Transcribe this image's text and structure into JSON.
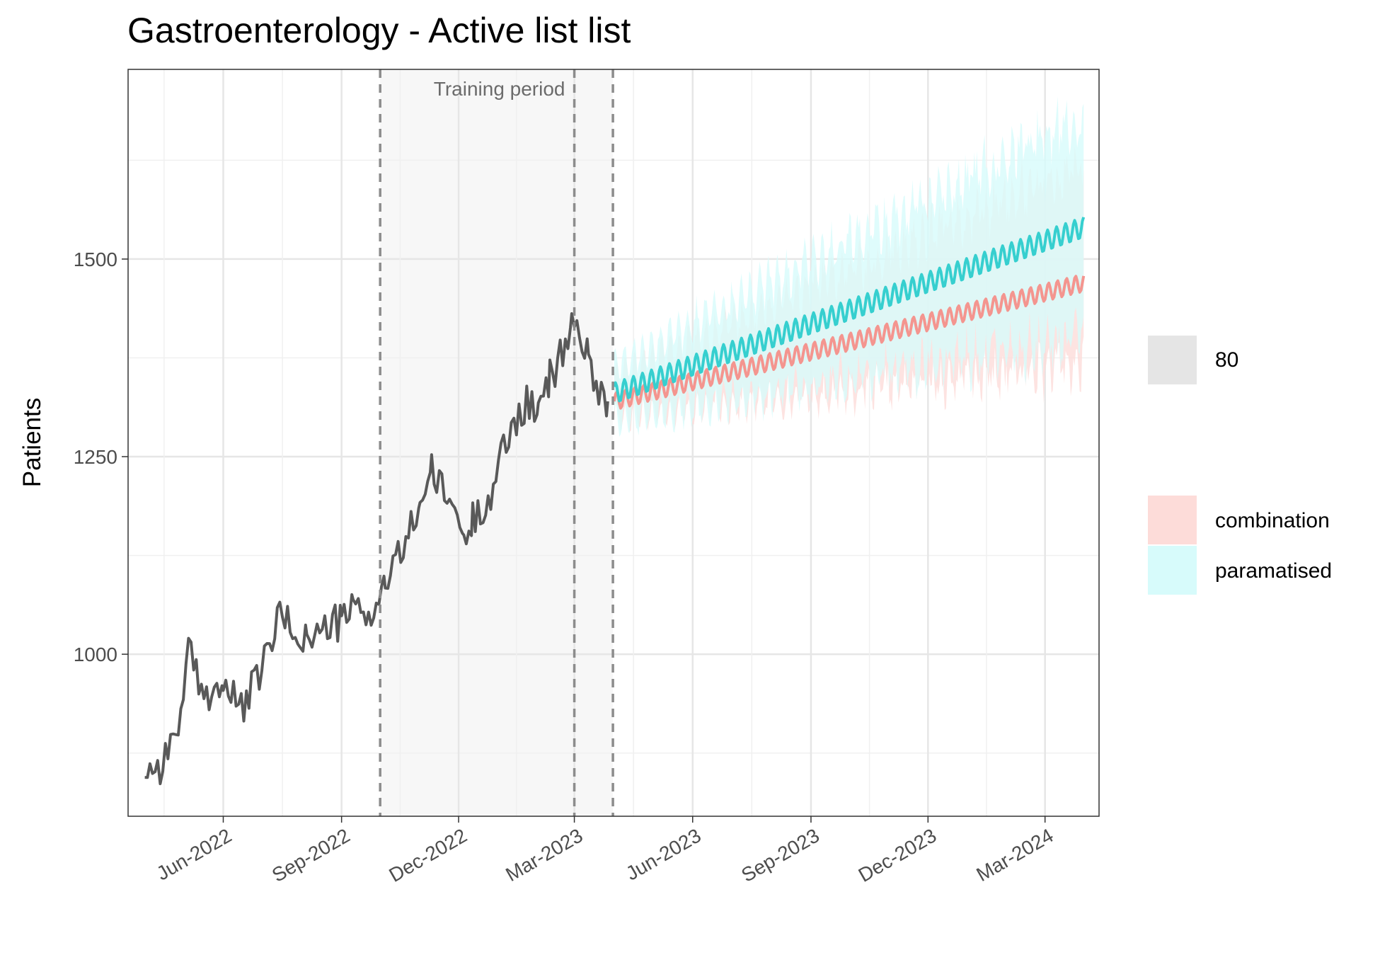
{
  "chart_data": {
    "type": "line",
    "title": "Gastroenterology - Active list list",
    "xlabel": "",
    "ylabel": "Patients",
    "xlim": [
      "2022-03-19",
      "2024-04-12"
    ],
    "ylim": [
      795,
      1740
    ],
    "y_ticks": [
      1000,
      1250,
      1500
    ],
    "x_ticks": [
      {
        "date": "2022-06-01",
        "label": "Jun-2022"
      },
      {
        "date": "2022-09-01",
        "label": "Sep-2022"
      },
      {
        "date": "2022-12-01",
        "label": "Dec-2022"
      },
      {
        "date": "2023-03-01",
        "label": "Mar-2023"
      },
      {
        "date": "2023-06-01",
        "label": "Jun-2023"
      },
      {
        "date": "2023-09-01",
        "label": "Sep-2023"
      },
      {
        "date": "2023-12-01",
        "label": "Dec-2023"
      },
      {
        "date": "2024-03-01",
        "label": "Mar-2024"
      }
    ],
    "grid": true,
    "legend_position": "right",
    "training_period": {
      "start": "2022-10-01",
      "end": "2023-03-31",
      "label": "Training period"
    },
    "marker_lines": [
      "2022-10-01",
      "2023-03-01",
      "2023-03-31"
    ],
    "series": [
      {
        "role": "observed",
        "color": "#595959",
        "x": [
          "2022-04-01",
          "2022-04-15",
          "2022-05-01",
          "2022-05-05",
          "2022-05-15",
          "2022-06-01",
          "2022-06-15",
          "2022-06-25",
          "2022-07-05",
          "2022-07-15",
          "2022-07-25",
          "2022-08-05",
          "2022-08-15",
          "2022-08-25",
          "2022-09-01",
          "2022-09-10",
          "2022-09-20",
          "2022-09-28",
          "2022-10-05",
          "2022-10-15",
          "2022-10-25",
          "2022-11-01",
          "2022-11-10",
          "2022-11-20",
          "2022-11-28",
          "2022-12-05",
          "2022-12-12",
          "2022-12-20",
          "2022-12-28",
          "2023-01-05",
          "2023-01-15",
          "2023-01-25",
          "2023-02-01",
          "2023-02-10",
          "2023-02-20",
          "2023-02-27",
          "2023-03-05",
          "2023-03-12",
          "2023-03-20",
          "2023-03-27"
        ],
        "y": [
          855,
          860,
          935,
          1005,
          950,
          960,
          930,
          960,
          1000,
          1050,
          1030,
          1020,
          1025,
          1040,
          1040,
          1060,
          1050,
          1060,
          1090,
          1120,
          1160,
          1195,
          1230,
          1200,
          1190,
          1140,
          1170,
          1190,
          1210,
          1260,
          1300,
          1320,
          1300,
          1350,
          1380,
          1420,
          1410,
          1370,
          1340,
          1320
        ]
      },
      {
        "name": "combination",
        "color": "#f4958f",
        "x": [
          "2023-04-01",
          "2024-03-31"
        ],
        "y": [
          1320,
          1470
        ],
        "lower": [
          1300,
          1365
        ],
        "upper": [
          1350,
          1620
        ]
      },
      {
        "name": "paramatised",
        "color": "#36cfcf",
        "x": [
          "2023-04-01",
          "2024-03-31"
        ],
        "y": [
          1330,
          1540
        ],
        "lower": [
          1295,
          1400
        ],
        "upper": [
          1365,
          1680
        ]
      }
    ],
    "legend": {
      "interval_entries": [
        {
          "label": "80",
          "color": "#e5e5e5"
        }
      ],
      "model_entries": [
        {
          "label": "combination",
          "color": "#fddcd9"
        },
        {
          "label": "paramatised",
          "color": "#d7fbfb"
        }
      ]
    }
  }
}
